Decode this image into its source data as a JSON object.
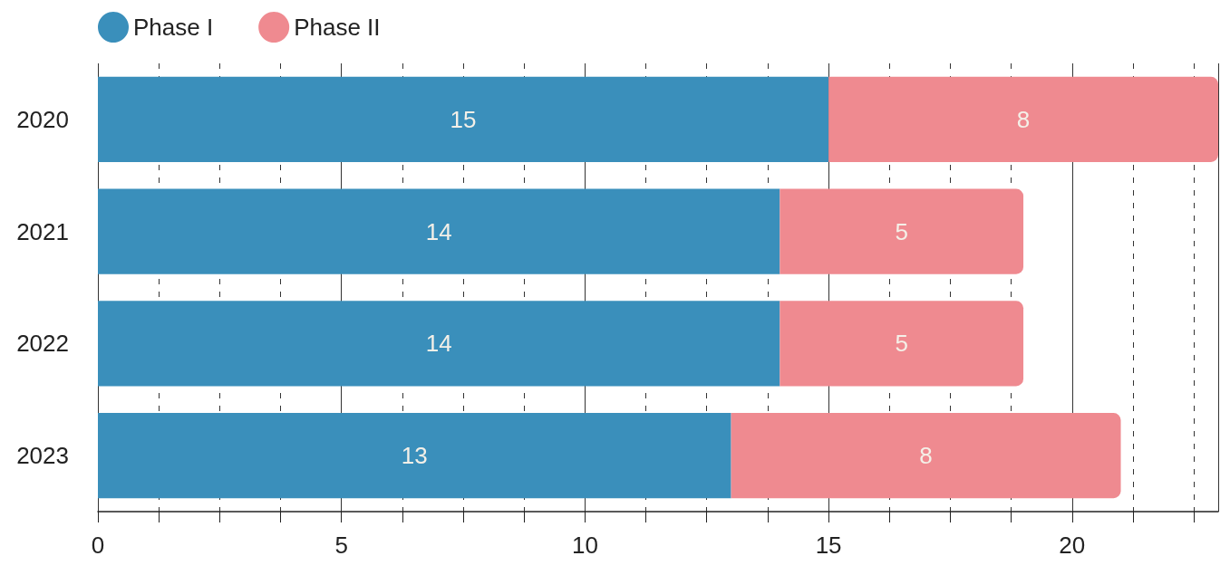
{
  "chart_data": {
    "type": "bar",
    "orientation": "horizontal",
    "stacked": true,
    "categories": [
      "2020",
      "2021",
      "2022",
      "2023"
    ],
    "series": [
      {
        "name": "Phase I",
        "color": "#3a8fbb",
        "values": [
          15,
          14,
          14,
          13
        ]
      },
      {
        "name": "Phase II",
        "color": "#ef8a90",
        "values": [
          8,
          5,
          5,
          8
        ]
      }
    ],
    "xlim": [
      0,
      23
    ],
    "xticks": [
      0,
      {
        "value": 1.25,
        "label": null
      },
      {
        "value": 2.5,
        "label": null
      },
      {
        "value": 3.75,
        "label": null
      },
      5,
      {
        "value": 6.25,
        "label": null
      },
      {
        "value": 7.5,
        "label": null
      },
      {
        "value": 8.75,
        "label": null
      },
      10,
      {
        "value": 11.25,
        "label": null
      },
      {
        "value": 12.5,
        "label": null
      },
      {
        "value": 13.75,
        "label": null
      },
      15,
      {
        "value": 16.25,
        "label": null
      },
      {
        "value": 17.5,
        "label": null
      },
      {
        "value": 18.75,
        "label": null
      },
      20,
      {
        "value": 21.25,
        "label": null
      },
      {
        "value": 22.5,
        "label": null
      }
    ],
    "grid": "x",
    "legend": "top left",
    "data_labels": true
  }
}
